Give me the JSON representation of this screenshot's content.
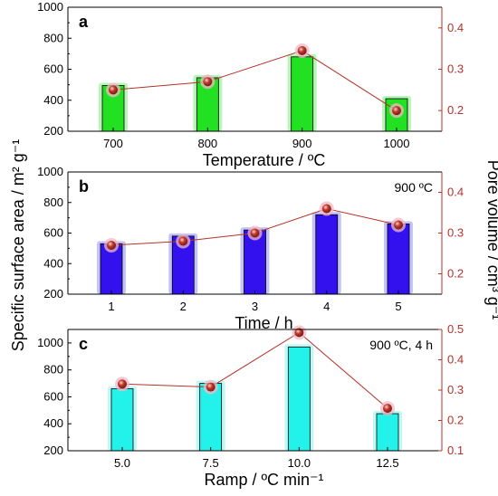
{
  "colors": {
    "pore_axis": "#b5322a",
    "line": "#b5322a",
    "marker_fill": "#c0392b",
    "marker_halo": "#f2b8c6",
    "bar_outline": "#000000"
  },
  "labels": {
    "left_axis": "Specific surface area / m² g⁻¹",
    "right_axis": "Pore volume / cm³ g⁻¹"
  },
  "chart_data": [
    {
      "type": "bar",
      "panel": "a",
      "xlabel": "Temperature / ºC",
      "annotation": "",
      "bar_color": "#22e122",
      "bar_glow": "#9ef09e",
      "categories": [
        "700",
        "800",
        "900",
        "1000"
      ],
      "series": [
        {
          "axis": "left",
          "kind": "bar",
          "values": [
            495,
            545,
            680,
            410
          ]
        },
        {
          "axis": "right",
          "kind": "line",
          "values": [
            0.25,
            0.27,
            0.345,
            0.2
          ]
        }
      ],
      "ylim_left": [
        200,
        1000
      ],
      "yticks_left": [
        200,
        400,
        600,
        800,
        1000
      ],
      "ylim_right": [
        0.15,
        0.45
      ],
      "yticks_right": [
        0.2,
        0.3,
        0.4
      ],
      "rtick_labels": [
        "0.2",
        "0.3",
        "0.4"
      ],
      "grid": false
    },
    {
      "type": "bar",
      "panel": "b",
      "xlabel": "Time / h",
      "annotation": "900 ºC",
      "bar_color": "#3311ee",
      "bar_glow": "#aaaaf5",
      "categories": [
        "1",
        "2",
        "3",
        "4",
        "5"
      ],
      "series": [
        {
          "axis": "left",
          "kind": "bar",
          "values": [
            530,
            580,
            620,
            720,
            660
          ]
        },
        {
          "axis": "right",
          "kind": "line",
          "values": [
            0.27,
            0.28,
            0.3,
            0.36,
            0.32
          ]
        }
      ],
      "ylim_left": [
        200,
        1000
      ],
      "yticks_left": [
        200,
        400,
        600,
        800,
        1000
      ],
      "ylim_right": [
        0.15,
        0.45
      ],
      "yticks_right": [
        0.2,
        0.3,
        0.4
      ],
      "rtick_labels": [
        "0.2",
        "0.3",
        "0.4"
      ],
      "grid": false
    },
    {
      "type": "bar",
      "panel": "c",
      "xlabel": "Ramp / ºC min⁻¹",
      "annotation": "900 ºC, 4 h",
      "bar_color": "#22f2ea",
      "bar_glow": "#a5f5f1",
      "categories": [
        "5.0",
        "7.5",
        "10.0",
        "12.5"
      ],
      "series": [
        {
          "axis": "left",
          "kind": "bar",
          "values": [
            660,
            700,
            970,
            475
          ]
        },
        {
          "axis": "right",
          "kind": "line",
          "values": [
            0.32,
            0.31,
            0.49,
            0.24
          ]
        }
      ],
      "ylim_left": [
        200,
        1100
      ],
      "yticks_left": [
        200,
        400,
        600,
        800,
        1000
      ],
      "ylim_right": [
        0.1,
        0.5
      ],
      "yticks_right": [
        0.1,
        0.2,
        0.3,
        0.4,
        0.5
      ],
      "rtick_labels": [
        "0.1",
        "0.2",
        "0.3",
        "0.4",
        "0.5"
      ],
      "grid": false
    }
  ]
}
